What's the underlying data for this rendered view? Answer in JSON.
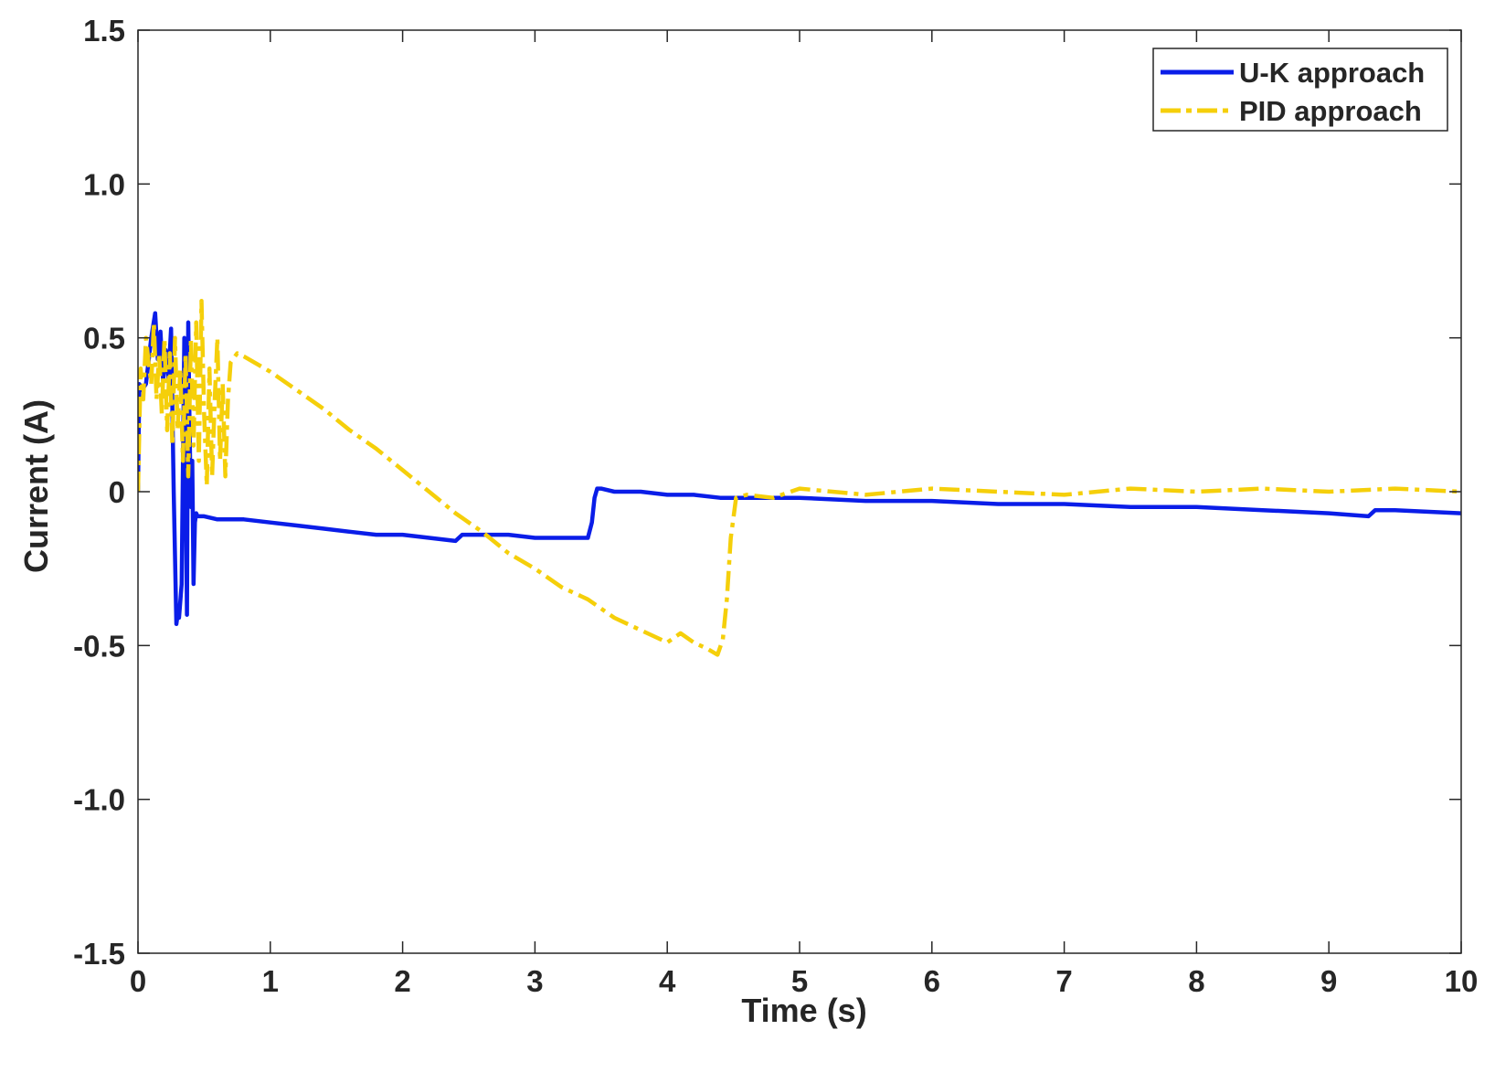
{
  "chart_data": {
    "type": "line",
    "title": "",
    "xlabel": "Time (s)",
    "ylabel": "Current (A)",
    "xlim": [
      0,
      10
    ],
    "ylim": [
      -1.5,
      1.5
    ],
    "xticks": [
      0,
      1,
      2,
      3,
      4,
      5,
      6,
      7,
      8,
      9,
      10
    ],
    "xtick_labels": [
      "0",
      "1",
      "2",
      "3",
      "4",
      "5",
      "6",
      "7",
      "8",
      "9",
      "10"
    ],
    "yticks": [
      -1.5,
      -1.0,
      -0.5,
      0,
      0.5,
      1.0,
      1.5
    ],
    "ytick_labels": [
      "-1.5",
      "-1.0",
      "-0.5",
      "0",
      "0.5",
      "1.0",
      "1.5"
    ],
    "grid": false,
    "legend_position": "top-right",
    "series": [
      {
        "name": "U-K approach",
        "color": "#0a1de8",
        "style": "solid",
        "x": [
          0,
          0.01,
          0.03,
          0.06,
          0.1,
          0.13,
          0.15,
          0.17,
          0.19,
          0.21,
          0.23,
          0.25,
          0.27,
          0.29,
          0.3,
          0.31,
          0.33,
          0.35,
          0.37,
          0.38,
          0.39,
          0.4,
          0.41,
          0.42,
          0.43,
          0.44,
          0.45,
          0.46,
          0.47,
          0.5,
          0.6,
          0.8,
          1.0,
          1.2,
          1.4,
          1.6,
          1.8,
          2.0,
          2.2,
          2.4,
          2.45,
          2.5,
          2.6,
          2.8,
          3.0,
          3.2,
          3.4,
          3.43,
          3.45,
          3.47,
          3.5,
          3.6,
          3.8,
          4.0,
          4.2,
          4.4,
          4.6,
          4.8,
          5.0,
          5.5,
          6.0,
          6.5,
          7.0,
          7.5,
          8.0,
          8.5,
          9.0,
          9.3,
          9.35,
          9.5,
          10.0
        ],
        "y": [
          0,
          0.35,
          0.33,
          0.35,
          0.5,
          0.58,
          0.43,
          0.52,
          0.36,
          0.46,
          0.37,
          0.53,
          0.0,
          -0.43,
          -0.4,
          -0.41,
          -0.3,
          0.5,
          -0.4,
          0.55,
          0.2,
          -0.05,
          0.1,
          -0.3,
          -0.1,
          -0.07,
          -0.08,
          -0.08,
          -0.08,
          -0.08,
          -0.09,
          -0.09,
          -0.1,
          -0.11,
          -0.12,
          -0.13,
          -0.14,
          -0.14,
          -0.15,
          -0.16,
          -0.14,
          -0.14,
          -0.14,
          -0.14,
          -0.15,
          -0.15,
          -0.15,
          -0.1,
          -0.02,
          0.01,
          0.01,
          0.0,
          0.0,
          -0.01,
          -0.01,
          -0.02,
          -0.02,
          -0.02,
          -0.02,
          -0.03,
          -0.03,
          -0.04,
          -0.04,
          -0.05,
          -0.05,
          -0.06,
          -0.07,
          -0.08,
          -0.06,
          -0.06,
          -0.07
        ]
      },
      {
        "name": "PID approach",
        "color": "#f5cf0a",
        "style": "dash-dot",
        "x": [
          0,
          0.02,
          0.04,
          0.06,
          0.08,
          0.1,
          0.12,
          0.14,
          0.16,
          0.18,
          0.2,
          0.22,
          0.24,
          0.26,
          0.28,
          0.3,
          0.32,
          0.34,
          0.36,
          0.38,
          0.4,
          0.42,
          0.44,
          0.46,
          0.48,
          0.5,
          0.52,
          0.54,
          0.56,
          0.58,
          0.6,
          0.62,
          0.64,
          0.66,
          0.68,
          0.7,
          0.75,
          0.8,
          1.0,
          1.2,
          1.4,
          1.6,
          1.8,
          2.0,
          2.2,
          2.4,
          2.6,
          2.8,
          3.0,
          3.2,
          3.4,
          3.6,
          3.8,
          4.0,
          4.1,
          4.2,
          4.3,
          4.38,
          4.42,
          4.45,
          4.48,
          4.52,
          4.6,
          4.8,
          5.0,
          5.5,
          6.0,
          6.5,
          7.0,
          7.5,
          8.0,
          8.5,
          9.0,
          9.5,
          10.0
        ],
        "y": [
          0.0,
          0.4,
          0.3,
          0.5,
          0.42,
          0.35,
          0.55,
          0.3,
          0.45,
          0.25,
          0.5,
          0.2,
          0.45,
          0.15,
          0.5,
          0.2,
          0.4,
          0.1,
          0.45,
          0.05,
          0.5,
          0.15,
          0.55,
          0.1,
          0.62,
          0.25,
          0.02,
          0.4,
          0.05,
          0.3,
          0.5,
          0.1,
          0.35,
          0.05,
          0.3,
          0.42,
          0.45,
          0.44,
          0.39,
          0.33,
          0.27,
          0.2,
          0.14,
          0.07,
          0.0,
          -0.07,
          -0.13,
          -0.2,
          -0.25,
          -0.31,
          -0.35,
          -0.41,
          -0.45,
          -0.49,
          -0.46,
          -0.49,
          -0.51,
          -0.53,
          -0.48,
          -0.35,
          -0.15,
          -0.02,
          -0.01,
          -0.02,
          0.01,
          -0.01,
          0.01,
          0.0,
          -0.01,
          0.01,
          0.0,
          0.01,
          0.0,
          0.01,
          0.0
        ]
      }
    ]
  }
}
